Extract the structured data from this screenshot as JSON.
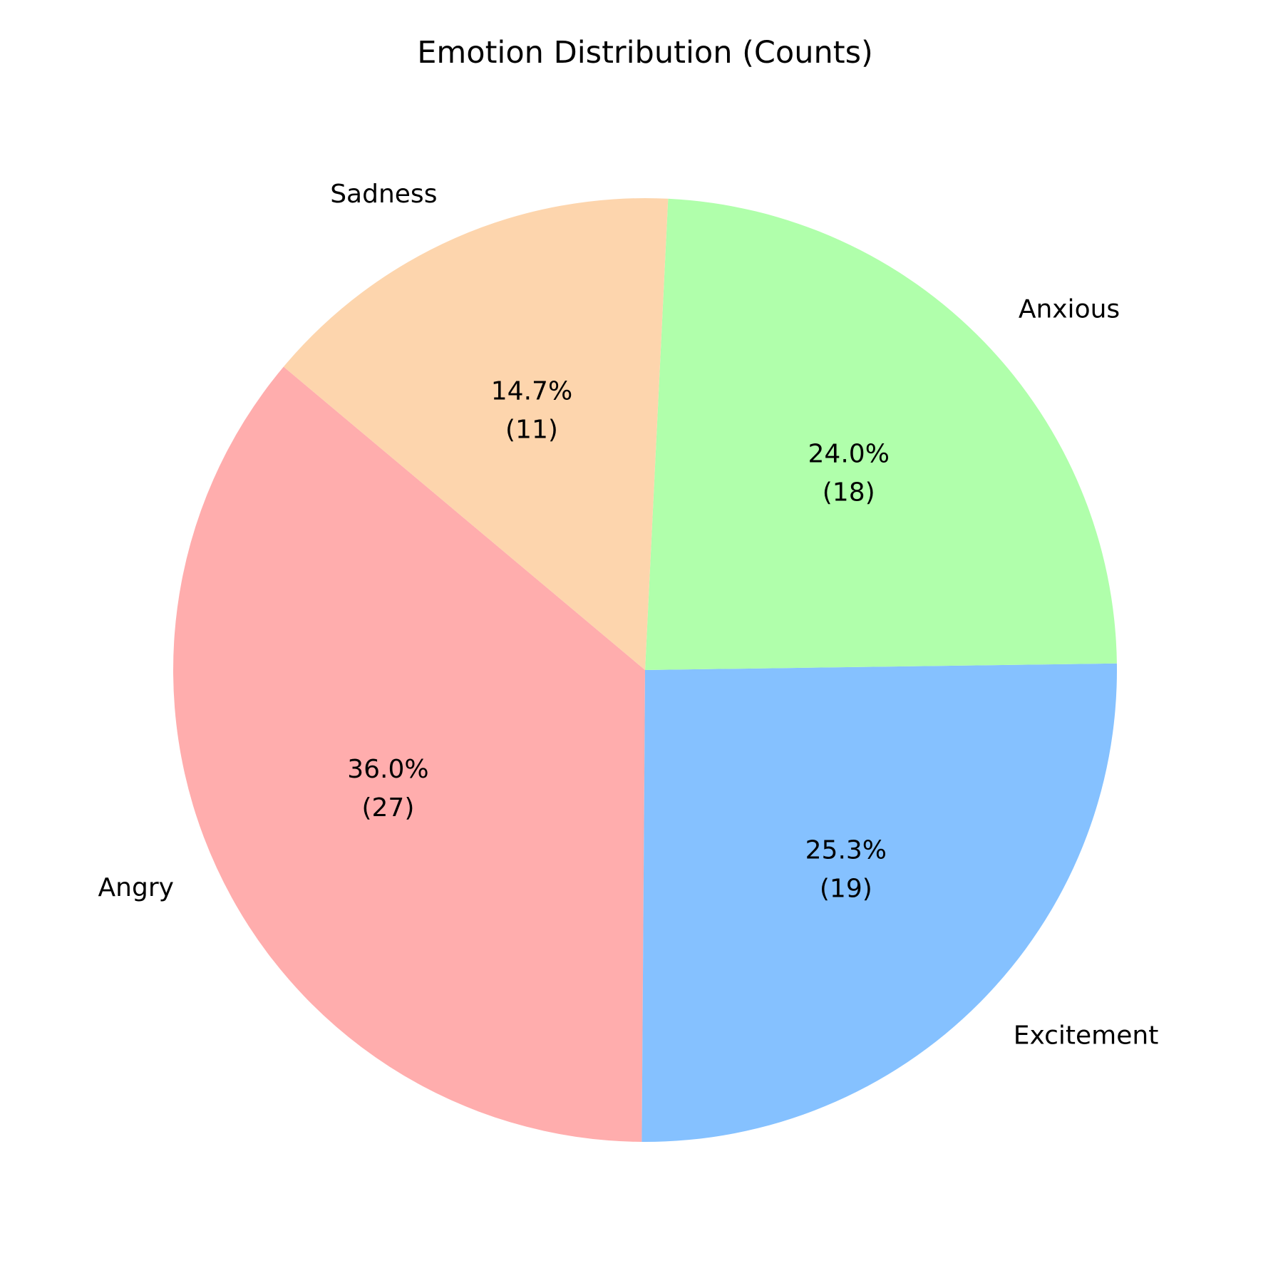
{
  "chart_data": {
    "type": "pie",
    "title": "Emotion Distribution (Counts)",
    "start_angle_deg": 140,
    "direction": "counterclockwise",
    "slices": [
      {
        "label": "Angry",
        "value": 27,
        "percent_label": "36.0%",
        "count_label": "(27)",
        "color": "#ffadad"
      },
      {
        "label": "Excitement",
        "value": 19,
        "percent_label": "25.3%",
        "count_label": "(19)",
        "color": "#85c1ff"
      },
      {
        "label": "Anxious",
        "value": 18,
        "percent_label": "24.0%",
        "count_label": "(18)",
        "color": "#b0ffab"
      },
      {
        "label": "Sadness",
        "value": 11,
        "percent_label": "14.7%",
        "count_label": "(11)",
        "color": "#fdd5ad"
      }
    ]
  }
}
